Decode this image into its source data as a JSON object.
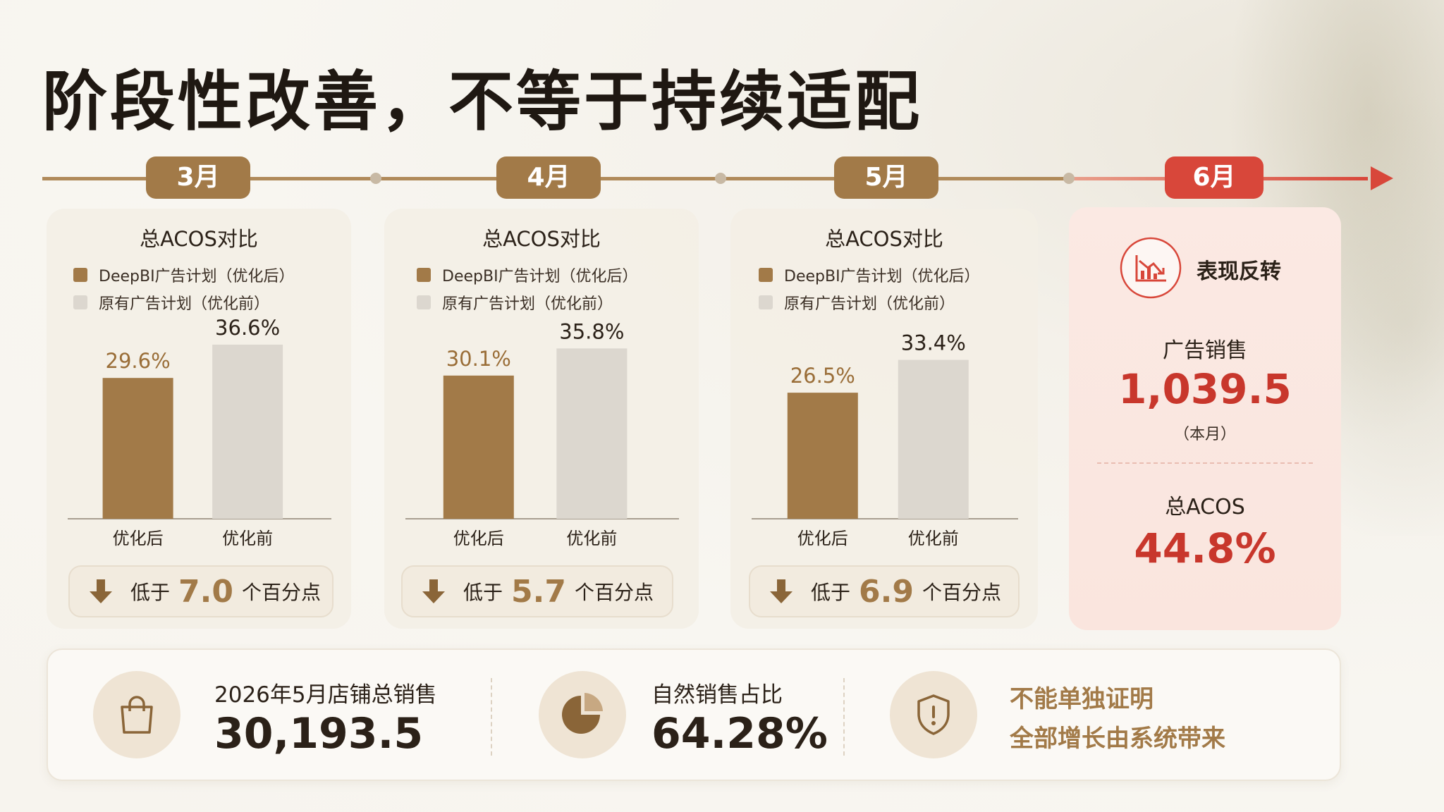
{
  "title": "阶段性改善，不等于持续适配",
  "timeline": {
    "months": [
      "3月",
      "4月",
      "5月",
      "6月"
    ]
  },
  "legend": {
    "after": "DeepBI广告计划（优化后）",
    "before": "原有广告计划（优化前）"
  },
  "badge_text": {
    "prefix": "低于",
    "suffix": "个百分点"
  },
  "chart_data": [
    {
      "type": "bar",
      "title": "总ACOS对比",
      "month": "3月",
      "categories": [
        "优化后",
        "优化前"
      ],
      "values": [
        29.6,
        36.6
      ],
      "labels": [
        "29.6%",
        "36.6%"
      ],
      "colors": [
        "#a27a48",
        "#dcd7cf"
      ],
      "unit": "%",
      "diff": "7.0",
      "ylim": [
        0,
        40
      ]
    },
    {
      "type": "bar",
      "title": "总ACOS对比",
      "month": "4月",
      "categories": [
        "优化后",
        "优化前"
      ],
      "values": [
        30.1,
        35.8
      ],
      "labels": [
        "30.1%",
        "35.8%"
      ],
      "colors": [
        "#a27a48",
        "#dcd7cf"
      ],
      "unit": "%",
      "diff": "5.7",
      "ylim": [
        0,
        40
      ]
    },
    {
      "type": "bar",
      "title": "总ACOS对比",
      "month": "5月",
      "categories": [
        "优化后",
        "优化前"
      ],
      "values": [
        26.5,
        33.4
      ],
      "labels": [
        "26.5%",
        "33.4%"
      ],
      "colors": [
        "#a27a48",
        "#dcd7cf"
      ],
      "unit": "%",
      "diff": "6.9",
      "ylim": [
        0,
        40
      ]
    }
  ],
  "june": {
    "heading": "表现反转",
    "ad_sales_label": "广告销售",
    "ad_sales_value": "1,039.5",
    "ad_sales_note": "（本月）",
    "acos_label": "总ACOS",
    "acos_value": "44.8%",
    "icon": "trend-down-chart-icon"
  },
  "bottom": {
    "store_sales_label": "2026年5月店铺总销售",
    "store_sales_value": "30,193.5",
    "organic_label": "自然销售占比",
    "organic_value": "64.28%",
    "note_line1": "不能单独证明",
    "note_line2": "全部增长由系统带来",
    "icons": [
      "shopping-bag-icon",
      "pie-chart-icon",
      "shield-alert-icon"
    ]
  },
  "colors": {
    "brand_brown": "#a27a48",
    "bar_gray": "#dcd7cf",
    "alert_red": "#d8473a",
    "text_dark": "#2b2118"
  }
}
